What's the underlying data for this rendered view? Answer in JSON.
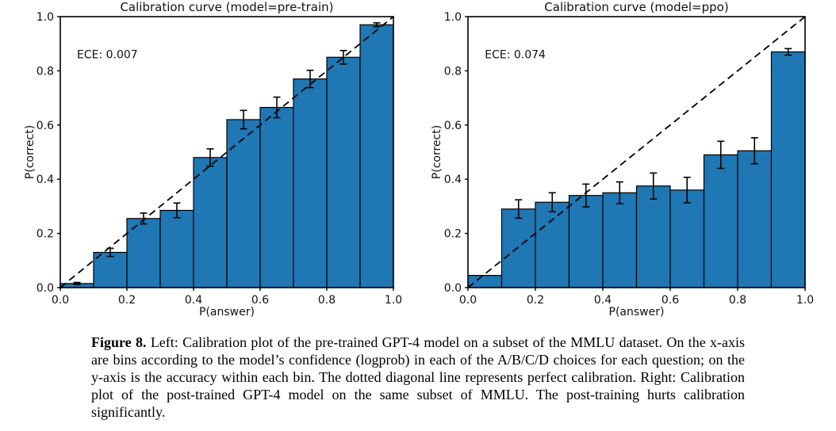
{
  "page": {
    "background": "#ffffff",
    "text_color": "#111111"
  },
  "caption": {
    "label": "Figure 8.",
    "text": "Left: Calibration plot of the pre-trained GPT-4 model on a subset of the MMLU dataset. On the x-axis are bins according to the model’s confidence (logprob) in each of the A/B/C/D choices for each question; on the y-axis is the accuracy within each bin. The dotted diagonal line represents perfect calibration. Right: Calibration plot of the post-trained GPT-4 model on the same subset of MMLU. The post-training hurts calibration significantly."
  },
  "chart_data": [
    {
      "type": "bar",
      "title": "Calibration curve (model=pre-train)",
      "annotation": "ECE: 0.007",
      "xlabel": "P(answer)",
      "ylabel": "P(correct)",
      "xlim": [
        0.0,
        1.0
      ],
      "ylim": [
        0.0,
        1.0
      ],
      "grid": false,
      "legend": null,
      "bar_color": "#1f77b4",
      "bar_edge_color": "#000000",
      "bin_edges": [
        0.0,
        0.1,
        0.2,
        0.3,
        0.4,
        0.5,
        0.6,
        0.7,
        0.8,
        0.9,
        1.0
      ],
      "values": [
        0.015,
        0.13,
        0.255,
        0.285,
        0.48,
        0.62,
        0.665,
        0.77,
        0.85,
        0.97
      ],
      "errors": [
        0.004,
        0.015,
        0.02,
        0.027,
        0.032,
        0.034,
        0.038,
        0.032,
        0.025,
        0.007
      ],
      "diagonal": {
        "style": "dashed",
        "from": [
          0.0,
          0.0
        ],
        "to": [
          1.0,
          1.0
        ],
        "color": "#000000"
      },
      "x_ticks": [
        {
          "value": 0.0,
          "label": "0.0"
        },
        {
          "value": 0.2,
          "label": "0.2"
        },
        {
          "value": 0.4,
          "label": "0.4"
        },
        {
          "value": 0.6,
          "label": "0.6"
        },
        {
          "value": 0.8,
          "label": "0.8"
        },
        {
          "value": 1.0,
          "label": "1.0"
        }
      ],
      "y_ticks": [
        {
          "value": 0.0,
          "label": "0.0"
        },
        {
          "value": 0.2,
          "label": "0.2"
        },
        {
          "value": 0.4,
          "label": "0.4"
        },
        {
          "value": 0.6,
          "label": "0.6"
        },
        {
          "value": 0.8,
          "label": "0.8"
        },
        {
          "value": 1.0,
          "label": "1.0"
        }
      ]
    },
    {
      "type": "bar",
      "title": "Calibration curve (model=ppo)",
      "annotation": "ECE: 0.074",
      "xlabel": "P(answer)",
      "ylabel": "P(correct)",
      "xlim": [
        0.0,
        1.0
      ],
      "ylim": [
        0.0,
        1.0
      ],
      "grid": false,
      "legend": null,
      "bar_color": "#1f77b4",
      "bar_edge_color": "#000000",
      "bin_edges": [
        0.0,
        0.1,
        0.2,
        0.3,
        0.4,
        0.5,
        0.6,
        0.7,
        0.8,
        0.9,
        1.0
      ],
      "values": [
        0.045,
        0.29,
        0.315,
        0.34,
        0.35,
        0.375,
        0.36,
        0.49,
        0.505,
        0.87
      ],
      "errors": [
        null,
        0.034,
        0.035,
        0.042,
        0.04,
        0.048,
        0.047,
        0.05,
        0.048,
        0.012
      ],
      "diagonal": {
        "style": "dashed",
        "from": [
          0.0,
          0.0
        ],
        "to": [
          1.0,
          1.0
        ],
        "color": "#000000"
      },
      "x_ticks": [
        {
          "value": 0.0,
          "label": "0.0"
        },
        {
          "value": 0.2,
          "label": "0.2"
        },
        {
          "value": 0.4,
          "label": "0.4"
        },
        {
          "value": 0.6,
          "label": "0.6"
        },
        {
          "value": 0.8,
          "label": "0.8"
        },
        {
          "value": 1.0,
          "label": "1.0"
        }
      ],
      "y_ticks": [
        {
          "value": 0.0,
          "label": "0.0"
        },
        {
          "value": 0.2,
          "label": "0.2"
        },
        {
          "value": 0.4,
          "label": "0.4"
        },
        {
          "value": 0.6,
          "label": "0.6"
        },
        {
          "value": 0.8,
          "label": "0.8"
        },
        {
          "value": 1.0,
          "label": "1.0"
        }
      ]
    }
  ]
}
